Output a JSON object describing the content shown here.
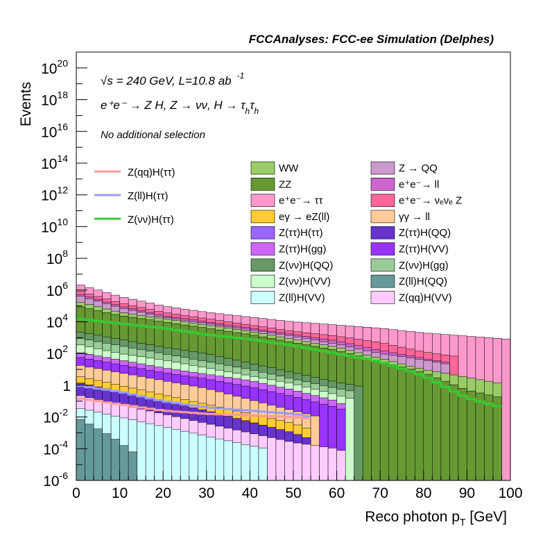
{
  "header": {
    "title": "FCCAnalyses: FCC-ee Simulation (Delphes)"
  },
  "annotations": {
    "energy_sqrt": "√s",
    "energy_rest": " = 240 GeV, L=10.8 ab",
    "energy_exp": "-1",
    "process": "e⁺e⁻ → Z H, Z → νν, H → τ",
    "process_sub1": "h",
    "process_tau": "τ",
    "process_sub2": "h",
    "selection": "No additional selection"
  },
  "colors": {
    "WW": "#99cc66",
    "ZZ": "#669933",
    "ee_tautau": "#ff99cc",
    "eg_eZll": "#ffcc33",
    "Ztautau_Htautau": "#9966ff",
    "Ztautau_Hgg": "#cc66ff",
    "Znunu_HQQ": "#669966",
    "Znunu_HVV": "#ccffcc",
    "Zll_HVV": "#ccffff",
    "Z_QQ": "#cc99cc",
    "ee_ll": "#cc66cc",
    "ee_nunuZ": "#ff6699",
    "gg_ll": "#ffcc99",
    "Ztautau_HQQ": "#6633cc",
    "Ztautau_HVV": "#9933ff",
    "Znunu_Hgg": "#99cc99",
    "Zll_HQQ": "#669999",
    "Zqq_HVV": "#ffccff",
    "sig_ZqqHtautau": "#ff9999",
    "sig_ZllHtautau": "#9999ff",
    "sig_ZnunuHtautau": "#33cc33"
  },
  "legend_signal": [
    {
      "key": "sig_ZqqHtautau",
      "label": "Z(qq)H(ττ)"
    },
    {
      "key": "sig_ZllHtautau",
      "label": "Z(ll)H(ττ)"
    },
    {
      "key": "sig_ZnunuHtautau",
      "label": "Z(νν)H(ττ)"
    }
  ],
  "legend_bkg_col1": [
    {
      "key": "WW",
      "label": "WW"
    },
    {
      "key": "ZZ",
      "label": "ZZ"
    },
    {
      "key": "ee_tautau",
      "label": "e⁺e⁻→ ττ"
    },
    {
      "key": "eg_eZll",
      "label": "eγ → eZ(ll)"
    },
    {
      "key": "Ztautau_Htautau",
      "label": "Z(ττ)H(ττ)"
    },
    {
      "key": "Ztautau_Hgg",
      "label": "Z(ττ)H(gg)"
    },
    {
      "key": "Znunu_HQQ",
      "label": "Z(νν)H(QQ)"
    },
    {
      "key": "Znunu_HVV",
      "label": "Z(νν)H(VV)"
    },
    {
      "key": "Zll_HVV",
      "label": "Z(ll)H(VV)"
    }
  ],
  "legend_bkg_col2": [
    {
      "key": "Z_QQ",
      "label": "Z → QQ"
    },
    {
      "key": "ee_ll",
      "label": "e⁺e⁻→ ll"
    },
    {
      "key": "ee_nunuZ",
      "label": "e⁺e⁻→ νₑνₑ Z"
    },
    {
      "key": "gg_ll",
      "label": "γγ → ll"
    },
    {
      "key": "Ztautau_HQQ",
      "label": "Z(ττ)H(QQ)"
    },
    {
      "key": "Ztautau_HVV",
      "label": "Z(ττ)H(VV)"
    },
    {
      "key": "Znunu_Hgg",
      "label": "Z(νν)H(gg)"
    },
    {
      "key": "Zll_HQQ",
      "label": "Z(ll)H(QQ)"
    },
    {
      "key": "Zqq_HVV",
      "label": "Z(qq)H(VV)"
    }
  ],
  "chart_data": {
    "type": "area",
    "histogram": "stacked",
    "xlabel": "Reco photon p",
    "xlabel_sub": "T",
    "xlabel_unit": " [GeV]",
    "ylabel": "Events",
    "xlim": [
      0,
      100
    ],
    "ylim_exp": [
      -6,
      21
    ],
    "log_y": true,
    "bin_width": 2,
    "x_ticks": [
      0,
      10,
      20,
      30,
      40,
      50,
      60,
      70,
      80,
      90,
      100
    ],
    "y_tick_labels": [
      {
        "exp": -6,
        "base": "10",
        "sup": "-6"
      },
      {
        "exp": -4,
        "base": "10",
        "sup": "-4"
      },
      {
        "exp": -2,
        "base": "10",
        "sup": "-2"
      },
      {
        "exp": 0,
        "base": "1",
        "sup": ""
      },
      {
        "exp": 2,
        "base": "10",
        "sup": "2"
      },
      {
        "exp": 4,
        "base": "10",
        "sup": "4"
      },
      {
        "exp": 6,
        "base": "10",
        "sup": "6"
      },
      {
        "exp": 8,
        "base": "10",
        "sup": "8"
      },
      {
        "exp": 10,
        "base": "10",
        "sup": "10"
      },
      {
        "exp": 12,
        "base": "10",
        "sup": "12"
      },
      {
        "exp": 14,
        "base": "10",
        "sup": "14"
      },
      {
        "exp": 16,
        "base": "10",
        "sup": "16"
      },
      {
        "exp": 18,
        "base": "10",
        "sup": "18"
      },
      {
        "exp": 20,
        "base": "10",
        "sup": "20"
      }
    ],
    "stack_top_log10": [
      {
        "key": "ee_tautau",
        "knots": [
          [
            0,
            6.4
          ],
          [
            10,
            5.6
          ],
          [
            20,
            5.0
          ],
          [
            30,
            4.6
          ],
          [
            40,
            4.3
          ],
          [
            50,
            4.0
          ],
          [
            60,
            3.8
          ],
          [
            70,
            3.6
          ],
          [
            80,
            3.3
          ],
          [
            90,
            3.1
          ],
          [
            100,
            2.9
          ]
        ],
        "end": 100
      },
      {
        "key": "ee_nunuZ",
        "knots": [
          [
            0,
            6.0
          ],
          [
            10,
            5.2
          ],
          [
            20,
            4.6
          ],
          [
            30,
            4.2
          ],
          [
            40,
            3.8
          ],
          [
            50,
            3.4
          ],
          [
            60,
            3.1
          ],
          [
            70,
            2.7
          ],
          [
            80,
            2.1
          ],
          [
            88,
            1.8
          ]
        ],
        "end": 88
      },
      {
        "key": "ee_ll",
        "knots": [
          [
            0,
            5.8
          ],
          [
            10,
            5.0
          ],
          [
            20,
            4.4
          ],
          [
            30,
            4.0
          ],
          [
            40,
            3.6
          ],
          [
            50,
            3.2
          ],
          [
            60,
            2.8
          ],
          [
            70,
            2.2
          ],
          [
            80,
            1.7
          ],
          [
            86,
            1.4
          ]
        ],
        "end": 86
      },
      {
        "key": "Z_QQ",
        "knots": [
          [
            0,
            5.7
          ],
          [
            10,
            4.9
          ],
          [
            20,
            4.3
          ],
          [
            30,
            3.9
          ],
          [
            40,
            3.5
          ],
          [
            50,
            3.1
          ],
          [
            60,
            2.6
          ],
          [
            70,
            2.0
          ],
          [
            80,
            1.6
          ],
          [
            86,
            1.3
          ]
        ],
        "end": 86
      },
      {
        "key": "WW",
        "knots": [
          [
            0,
            5.3
          ],
          [
            10,
            4.6
          ],
          [
            20,
            4.2
          ],
          [
            30,
            3.8
          ],
          [
            40,
            3.4
          ],
          [
            50,
            2.9
          ],
          [
            60,
            2.4
          ],
          [
            70,
            1.7
          ],
          [
            80,
            1.0
          ],
          [
            90,
            0.5
          ],
          [
            98,
            0.1
          ]
        ],
        "end": 98
      },
      {
        "key": "ZZ",
        "knots": [
          [
            0,
            5.0
          ],
          [
            10,
            4.4
          ],
          [
            20,
            4.0
          ],
          [
            30,
            3.6
          ],
          [
            40,
            3.2
          ],
          [
            50,
            2.7
          ],
          [
            60,
            2.2
          ],
          [
            70,
            1.5
          ],
          [
            80,
            0.8
          ],
          [
            90,
            -0.3
          ],
          [
            98,
            -0.8
          ]
        ],
        "end": 98
      },
      {
        "key": "Znunu_HQQ",
        "knots": [
          [
            0,
            3.4
          ],
          [
            10,
            2.9
          ],
          [
            20,
            2.4
          ],
          [
            30,
            2.0
          ],
          [
            40,
            1.4
          ],
          [
            50,
            0.8
          ],
          [
            60,
            0.2
          ],
          [
            66,
            -0.1
          ]
        ],
        "end": 66
      },
      {
        "key": "Znunu_Hgg",
        "knots": [
          [
            0,
            3.0
          ],
          [
            10,
            2.5
          ],
          [
            20,
            2.0
          ],
          [
            30,
            1.5
          ],
          [
            40,
            1.0
          ],
          [
            50,
            0.4
          ],
          [
            60,
            -0.2
          ],
          [
            64,
            -0.4
          ]
        ],
        "end": 64
      },
      {
        "key": "Znunu_HVV",
        "knots": [
          [
            0,
            2.6
          ],
          [
            10,
            2.0
          ],
          [
            20,
            1.6
          ],
          [
            30,
            1.1
          ],
          [
            40,
            0.6
          ],
          [
            50,
            0.1
          ],
          [
            60,
            -0.6
          ],
          [
            64,
            -0.9
          ]
        ],
        "end": 64
      },
      {
        "key": "Ztautau_Hgg",
        "knots": [
          [
            0,
            2.1
          ],
          [
            10,
            1.6
          ],
          [
            20,
            1.1
          ],
          [
            30,
            0.7
          ],
          [
            40,
            0.3
          ],
          [
            50,
            -0.3
          ],
          [
            60,
            -1.0
          ],
          [
            62,
            -1.3
          ]
        ],
        "end": 62
      },
      {
        "key": "Ztautau_HVV",
        "knots": [
          [
            0,
            1.8
          ],
          [
            10,
            1.3
          ],
          [
            20,
            0.8
          ],
          [
            30,
            0.4
          ],
          [
            40,
            -0.1
          ],
          [
            50,
            -0.7
          ],
          [
            60,
            -1.4
          ],
          [
            62,
            -1.6
          ]
        ],
        "end": 62
      },
      {
        "key": "gg_ll",
        "knots": [
          [
            0,
            1.3
          ],
          [
            10,
            0.8
          ],
          [
            20,
            0.3
          ],
          [
            30,
            -0.2
          ],
          [
            40,
            -0.9
          ],
          [
            50,
            -1.6
          ],
          [
            56,
            -2.0
          ]
        ],
        "end": 56
      },
      {
        "key": "eg_eZll",
        "knots": [
          [
            0,
            0.6
          ],
          [
            10,
            0.0
          ],
          [
            20,
            -0.6
          ],
          [
            30,
            -1.2
          ],
          [
            40,
            -1.8
          ],
          [
            50,
            -2.4
          ],
          [
            54,
            -2.8
          ]
        ],
        "end": 54
      },
      {
        "key": "Ztautau_HQQ",
        "knots": [
          [
            0,
            0.2
          ],
          [
            10,
            -0.4
          ],
          [
            20,
            -1.0
          ],
          [
            30,
            -1.6
          ],
          [
            40,
            -2.3
          ],
          [
            50,
            -3.0
          ],
          [
            54,
            -3.4
          ]
        ],
        "end": 54
      },
      {
        "key": "Zqq_HVV",
        "knots": [
          [
            0,
            -0.6
          ],
          [
            10,
            -1.2
          ],
          [
            20,
            -1.8
          ],
          [
            30,
            -2.4
          ],
          [
            40,
            -3.0
          ],
          [
            50,
            -3.6
          ],
          [
            60,
            -4.0
          ],
          [
            62,
            -4.2
          ]
        ],
        "end": 62
      },
      {
        "key": "Zll_HVV",
        "knots": [
          [
            0,
            -1.4
          ],
          [
            10,
            -2.0
          ],
          [
            20,
            -2.6
          ],
          [
            30,
            -3.2
          ],
          [
            40,
            -3.8
          ],
          [
            44,
            -4.0
          ]
        ],
        "end": 44
      },
      {
        "key": "Zll_HQQ",
        "knots": [
          [
            0,
            -2.0
          ],
          [
            4,
            -2.6
          ],
          [
            8,
            -3.2
          ],
          [
            12,
            -4.0
          ],
          [
            14,
            -4.4
          ]
        ],
        "end": 14
      }
    ],
    "signal_lines_log10": [
      {
        "key": "sig_ZnunuHtautau",
        "knots": [
          [
            0,
            4.2
          ],
          [
            10,
            3.9
          ],
          [
            20,
            3.6
          ],
          [
            30,
            3.2
          ],
          [
            40,
            2.9
          ],
          [
            50,
            2.5
          ],
          [
            60,
            2.0
          ],
          [
            70,
            1.5
          ],
          [
            80,
            0.6
          ],
          [
            90,
            -0.8
          ],
          [
            98,
            -1.4
          ]
        ],
        "end": 98
      },
      {
        "key": "sig_ZllHtautau",
        "knots": [
          [
            0,
            0.0
          ],
          [
            10,
            -0.4
          ],
          [
            20,
            -1.0
          ],
          [
            30,
            -1.4
          ],
          [
            40,
            -1.6
          ],
          [
            50,
            -1.8
          ],
          [
            54,
            -2.0
          ]
        ],
        "end": 54
      },
      {
        "key": "sig_ZqqHtautau",
        "knots": [
          [
            0,
            -0.8
          ],
          [
            10,
            -1.2
          ],
          [
            20,
            -1.6
          ],
          [
            30,
            -1.8
          ],
          [
            40,
            -1.9
          ],
          [
            50,
            -2.0
          ],
          [
            54,
            -2.1
          ]
        ],
        "end": 54
      }
    ]
  }
}
